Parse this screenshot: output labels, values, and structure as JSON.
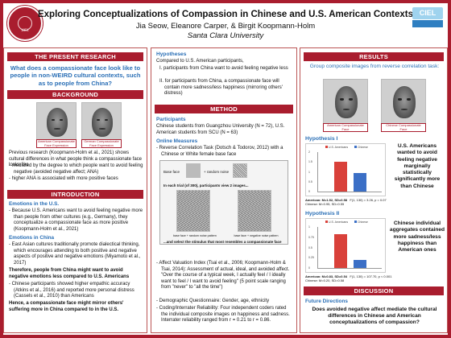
{
  "header": {
    "title": "Exploring Conceptualizations of Compassion in Chinese and U.S. American Contexts",
    "authors": "Jia Seow, Eleanore Carper, & Birgit Koopmann-Holm",
    "affiliation": "Santa Clara University",
    "seal_text": "SANTA CLARA UNIVERSITY",
    "seal_year": "1851",
    "logo_text": "CIEL"
  },
  "col1": {
    "present_header": "THE PRESENT RESEARCH",
    "question": "What does a compassionate face look like to people in non-WEIRD cultural contexts, such as to people from China?",
    "background_header": "BACKGROUND",
    "face_label_american": "American Compassionate Face Expression",
    "face_label_german": "German Compassionate Face Expression",
    "bg_text": "Previous research (Koopmann-Holm et al., 2021) shows cultural differences in what people think a compassionate face looks like",
    "bg_b1": "- mediated by the degree to which people want to avoid feeling negative (avoided negative affect; ANA)",
    "bg_b2": "- higher ANA is associated with more positive faces",
    "intro_header": "INTRODUCTION",
    "emo_us_title": "Emotions in the U.S.",
    "emo_us_b1": "- Because U.S. Americans want to avoid feeling negative more than people from other cultures (e.g., Germany), they conceptualize a compassionate face as more positive (Koopmann-Holm et al., 2021)",
    "emo_cn_title": "Emotions in China",
    "emo_cn_b1": "- East Asian cultures traditionally promote dialectical thinking, which encourages attending to both positive and negative aspects of positive and negative emotions (Miyamoto et al., 2017)",
    "therefore": "Therefore, people from China might want to avoid negative emotions less compared to U.S. Americans",
    "emo_cn_b2": "- Chinese participants showed higher empathic accuracy (Atkins et al., 2016) and reported more personal distress (Cassels et al., 2010) than Americans",
    "hence": "Hence, a compassionate face might mirror others' suffering more in China compared to in the U.S."
  },
  "col2": {
    "hyp_title": "Hypotheses",
    "hyp_intro": "Compared to U.S. American participants,",
    "hyp_i": "I. participants from China want to avoid feeling negative less",
    "hyp_ii": "II. for participants from China, a compassionate face will contain more sadness/less happiness (mirroring others' distress)",
    "method_header": "METHOD",
    "participants_title": "Participants",
    "participants_text": "Chinese students from Guangzhou University (N = 72), U.S. American students from SCU (N = 63)",
    "online_title": "Online Measures",
    "rct": "- Reverse Correlation Task (Dotsch & Todorov, 2012) with a Chinese or White female base face",
    "base_face": "Base face",
    "random_noise": "+ random noise",
    "trial_text": "In each trial (of 300), participants view 2 images...",
    "noise_left": "base face + random noise pattern",
    "noise_right": "base face + negative noise pattern",
    "select_text": "...and select the stimulus that most resembles a compassionate face",
    "avi": "- Affect Valuation Index (Tsai et al., 2006; Koopmann-Holm & Tsai, 2014): Assessment of actual, ideal, and avoided affect. \"Over the course of a typical week, I actually feel / I ideally want to feel / I want to avoid feeling\" (5 point scale ranging from \"never\" to \"all the time\")",
    "demo": "- Demographic Questionnaire: Gender, age, ethnicity",
    "coding": "- Coding/Interrater Reliability: Four independent coders rated the individual composite images on happiness and sadness. Interrater reliability ranged from r = 0.21 to r = 0.86."
  },
  "col3": {
    "results_header": "RESULTS",
    "group_title": "Group composite images from reverse correlation task:",
    "label_am": "American Compassionate Face",
    "label_cn": "Chinese Compassionate Face",
    "h1_title": "Hypothesis I",
    "h1_side": "U.S. Americans wanted to avoid feeling negative marginally statistically significantly more than Chinese",
    "h1_stats_am": "American: M=1.52, SD=0.58",
    "h1_stats_cn": "Chinese: M=0.95, SD=0.55",
    "h1_stats_f": "F(1, 130) = 3.26, p = 0.07",
    "h2_title": "Hypothesis II",
    "h2_side": "Chinese individual aggregates contained more sadness/less happiness than American ones",
    "h2_stats_am": "American: M=0.83, SD=0.54",
    "h2_stats_cn": "Chinese: M=0.20, SD=0.58",
    "h2_stats_f": "F(1, 130) = 107.70, p < 0.001",
    "discussion_header": "DISCUSSION",
    "future_title": "Future Directions",
    "future_q": "Does avoided negative affect mediate the cultural differences in Chinese and American conceptualizations of compassion?",
    "legend_am": "U.S. Americans",
    "legend_cn": "Chinese"
  },
  "chart_data": [
    {
      "type": "bar",
      "categories": [
        "U.S. Americans",
        "Chinese"
      ],
      "values": [
        1.52,
        0.95
      ],
      "ylim": [
        0,
        2
      ],
      "colors": [
        "#d9413a",
        "#3b6fc6"
      ]
    },
    {
      "type": "bar",
      "categories": [
        "U.S. Americans",
        "Chinese"
      ],
      "values": [
        0.83,
        0.2
      ],
      "ylim": [
        0,
        1
      ],
      "colors": [
        "#d9413a",
        "#3b6fc6"
      ]
    }
  ]
}
